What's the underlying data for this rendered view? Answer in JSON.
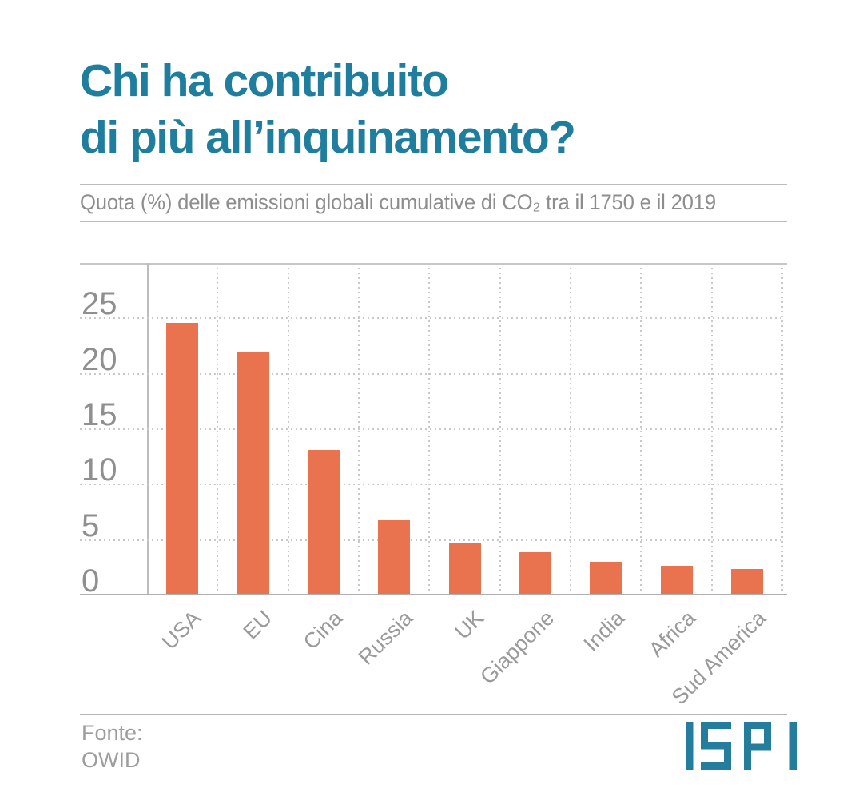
{
  "header": {
    "title_line1": "Chi ha contribuito",
    "title_line2": "di più all’inquinamento?",
    "subtitle": "Quota (%) delle emissioni globali cumulative di CO₂ tra il 1750 e il 2019"
  },
  "chart_data": {
    "type": "bar",
    "title": "Chi ha contribuito di più all'inquinamento?",
    "subtitle": "Quota (%) delle emissioni globali cumulative di CO₂ tra il 1750 e il 2019",
    "categories": [
      "USA",
      "EU",
      "Cina",
      "Russia",
      "UK",
      "Giappone",
      "India",
      "Africa",
      "Sud America"
    ],
    "values": [
      24.6,
      21.9,
      13.1,
      6.8,
      4.7,
      3.9,
      3.0,
      2.7,
      2.4
    ],
    "xlabel": "",
    "ylabel": "Quota (%)",
    "ylim": [
      0,
      30
    ],
    "yticks": [
      0,
      5,
      10,
      15,
      20,
      25
    ],
    "grid": true,
    "grid_style": "dotted",
    "legend": false,
    "bar_color": "#e8734e"
  },
  "footer": {
    "source_label": "Fonte:",
    "source_value": "OWID",
    "logo_text": "ISPI"
  },
  "colors": {
    "title_teal": "#1f7d9e",
    "logo_teal": "#257d9d",
    "bar_orange": "#e8734e",
    "label_gray": "#9a9a9a",
    "tick_gray": "#8f8f8f",
    "grid_gray": "#c9c9c9"
  }
}
